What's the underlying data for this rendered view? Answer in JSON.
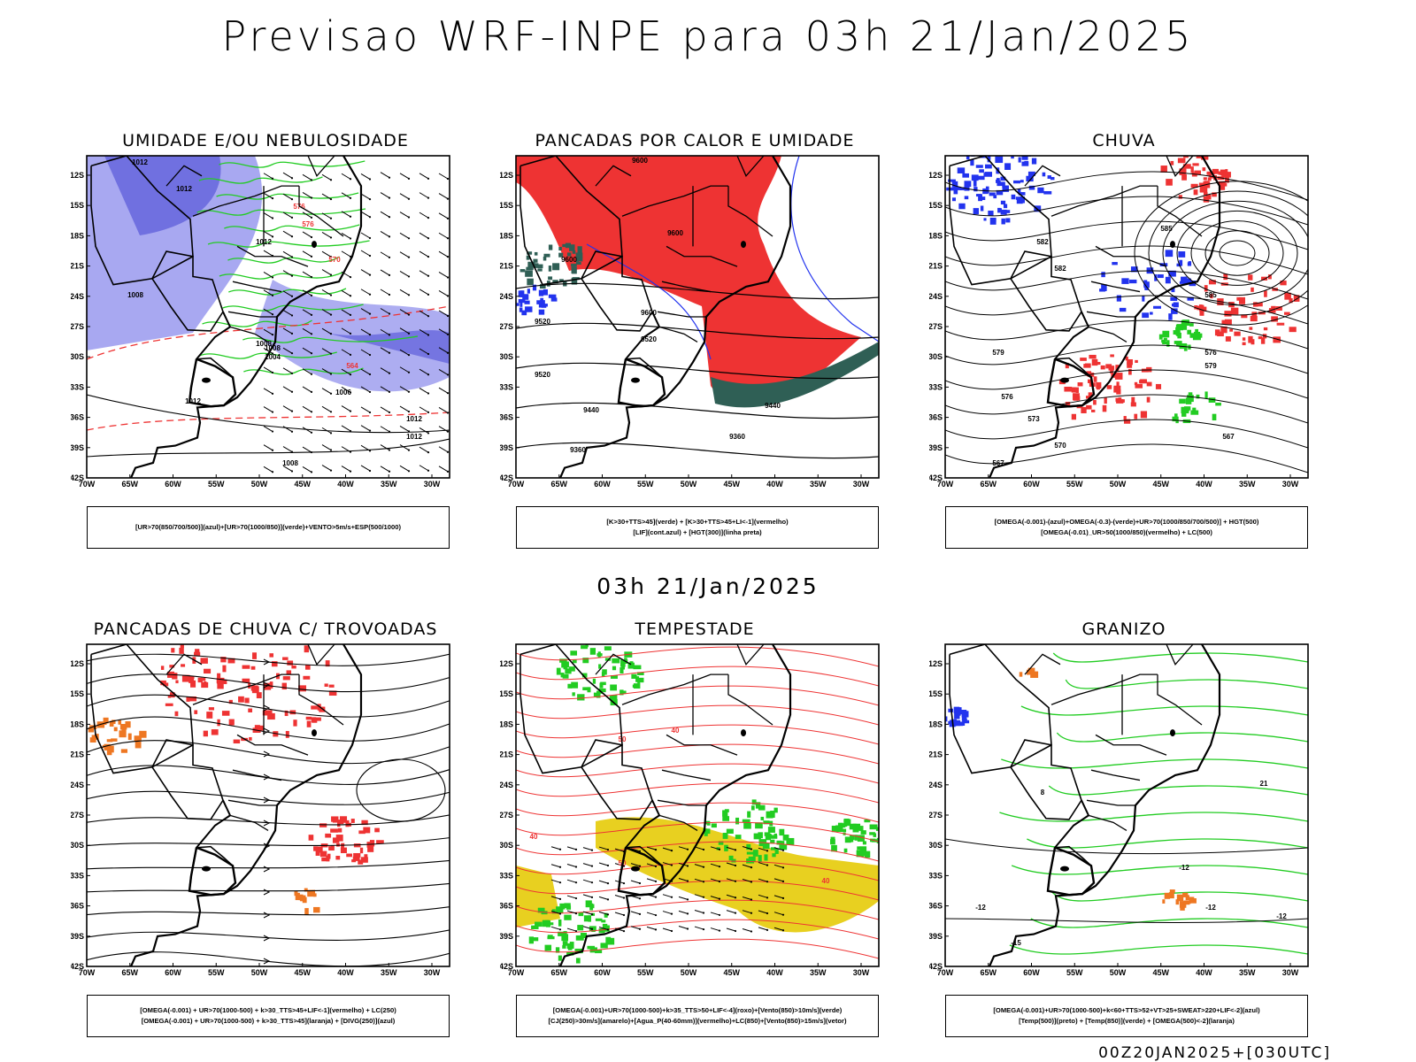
{
  "page": {
    "title": "Previsao WRF-INPE  para 03h 21/Jan/2025",
    "mid_time": "03h 21/Jan/2025",
    "footer": "00Z20JAN2025+[030UTC]"
  },
  "axes": {
    "lat_labels": [
      "12S",
      "15S",
      "18S",
      "21S",
      "24S",
      "27S",
      "30S",
      "33S",
      "36S",
      "39S",
      "42S"
    ],
    "lon_labels": [
      "70W",
      "65W",
      "60W",
      "55W",
      "50W",
      "45W",
      "40W",
      "35W",
      "30W"
    ]
  },
  "colors": {
    "red": "#ee3333",
    "green": "#22cc22",
    "blue": "#2233ee",
    "lightblue": "#9999ee",
    "purple": "#6666dd",
    "darkteal": "#2f5f55",
    "yellow": "#e8d020",
    "orange": "#ee7722"
  },
  "panels": [
    {
      "title": "UMIDADE E/OU NEBULOSIDADE",
      "legend": [
        "[UR>70(850/700/500)](azul)+[UR>70(1000/850)](verde)+VENTO>5m/s+ESP(500/1000)"
      ],
      "contour_labels": [
        "1012",
        "1012",
        "1012",
        "1008",
        "1004",
        "1008",
        "1012",
        "1008",
        "1012",
        "1012",
        "576",
        "576",
        "570",
        "564",
        "1008",
        "1006"
      ]
    },
    {
      "title": "PANCADAS POR CALOR E UMIDADE",
      "legend": [
        "[K>30+TTS>45](verde) + [K>30+TTS>45+LI<-1](vermelho)",
        "[LIF](cont.azul) + [HGT(300)](linha preta)"
      ],
      "contour_labels": [
        "9600",
        "9600",
        "9600",
        "9520",
        "9520",
        "9600",
        "9520",
        "9440",
        "9440",
        "9360",
        "9360"
      ]
    },
    {
      "title": "CHUVA",
      "legend": [
        "[OMEGA(-0.001)-(azul)+OMEGA(-0.3)-(verde)+UR>70(1000/850/700/500)] + HGT(500)",
        "[OMEGA(-0.01)_UR>50(1000/850)(vermelho) + LC(500)"
      ],
      "contour_labels": [
        "582",
        "585",
        "582",
        "579",
        "576",
        "573",
        "570",
        "567",
        "576",
        "579",
        "585",
        "567"
      ]
    },
    {
      "title": "PANCADAS DE CHUVA C/ TROVOADAS",
      "legend": [
        "[OMEGA(-0.001) + UR>70(1000-500) + k>30_TTS>45+LIF<-1](vermelho) + LC(250)",
        "[OMEGA(-0.001) + UR>70(1000-500) + k>30_TTS>45](laranja) + [DIVG(250)](azul)"
      ],
      "contour_labels": []
    },
    {
      "title": "TEMPESTADE",
      "legend": [
        "[OMEGA(-0.001)+UR>70(1000-500)+k>35_TTS>50+LIF<-4](roxo)+[Vento(850)>10m/s](verde)",
        "[CJ(250)>30m/s](amarelo)+[Agua_P(40-60mm)](vermelho)+LC(850)+[Vento(850)>15m/s](vetor)"
      ],
      "contour_labels": [
        "50",
        "40",
        "50",
        "40",
        "40"
      ]
    },
    {
      "title": "GRANIZO",
      "legend": [
        "[OMEGA(-0.001)+UR>70(1000-500)+k<60+TTS>52+VT>25+SWEAT>220+LIF<-2](azul)",
        "[Temp(500)](preto) + [Temp(850)](verde) + [OMEGA(500)<-2](laranja)"
      ],
      "contour_labels": [
        "8",
        "21",
        "-12",
        "-12",
        "-12",
        "-15",
        "-12"
      ]
    }
  ]
}
